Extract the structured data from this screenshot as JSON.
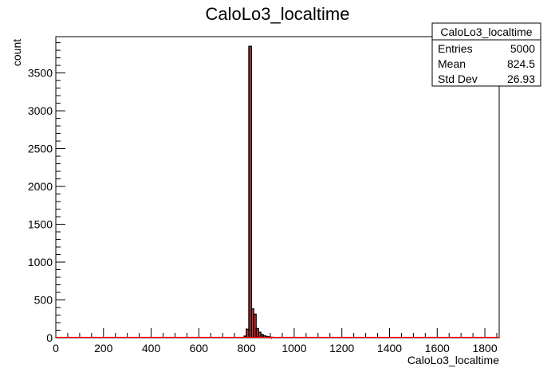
{
  "chart_data": {
    "type": "bar",
    "title": "CaloLo3_localtime",
    "xlabel": "CaloLo3_localtime",
    "ylabel": "count",
    "xlim": [
      0,
      1860
    ],
    "ylim": [
      0,
      3980
    ],
    "x_ticks": [
      0,
      200,
      400,
      600,
      800,
      1000,
      1200,
      1400,
      1600,
      1800
    ],
    "y_ticks": [
      0,
      500,
      1000,
      1500,
      2000,
      2500,
      3000,
      3500
    ],
    "bin_width": 10,
    "bins": [
      {
        "x": 790,
        "value": 20
      },
      {
        "x": 800,
        "value": 110
      },
      {
        "x": 810,
        "value": 3850
      },
      {
        "x": 820,
        "value": 380
      },
      {
        "x": 830,
        "value": 310
      },
      {
        "x": 840,
        "value": 120
      },
      {
        "x": 850,
        "value": 70
      },
      {
        "x": 860,
        "value": 40
      },
      {
        "x": 870,
        "value": 25
      },
      {
        "x": 880,
        "value": 15
      },
      {
        "x": 890,
        "value": 10
      },
      {
        "x": 900,
        "value": 5
      }
    ],
    "line_color": "#000000",
    "fill_color": "#ff0000",
    "grid": false,
    "legend_placement": "top-right"
  },
  "stats": {
    "title": "CaloLo3_localtime",
    "rows": [
      {
        "label": "Entries",
        "value": "5000"
      },
      {
        "label": "Mean",
        "value": "824.5"
      },
      {
        "label": "Std Dev",
        "value": "26.93"
      }
    ]
  }
}
